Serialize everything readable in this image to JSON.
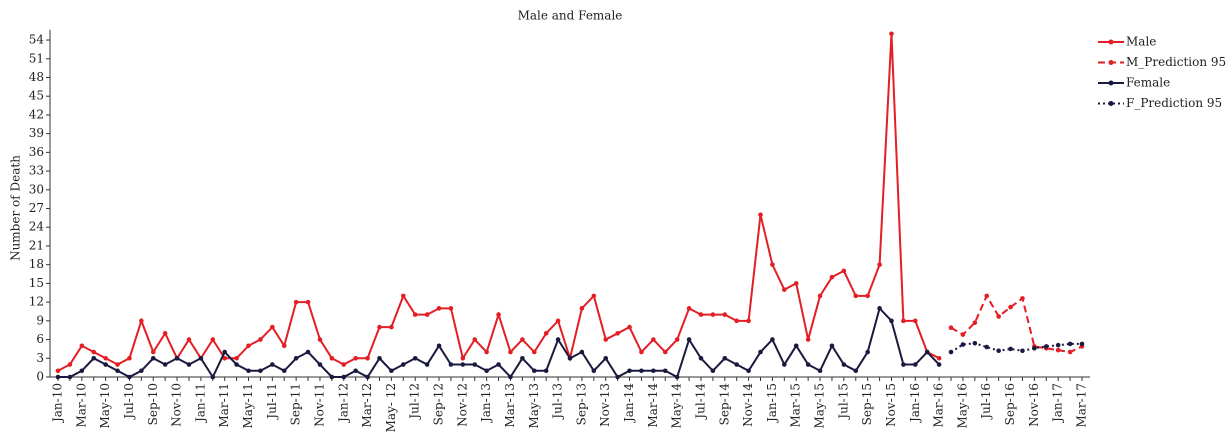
{
  "chart_data": {
    "type": "line",
    "title": "Male and Female",
    "y_label": "Number of Death",
    "categories": [
      "Jan-10",
      null,
      "Mar-10",
      null,
      "May-10",
      null,
      "Jul-10",
      null,
      "Sep-10",
      null,
      "Nov-10",
      null,
      "Jan-11",
      null,
      "Mar-11",
      null,
      "May-11",
      null,
      "Jul-11",
      null,
      "Sep-11",
      null,
      "Nov-11",
      null,
      "Jan-12",
      null,
      "Mar-12",
      null,
      "May- 12",
      null,
      "Jul-12",
      null,
      "Sep-12",
      null,
      "Nov-12",
      null,
      "Jan-13",
      null,
      "Mar-13",
      null,
      "May-13",
      null,
      "Jul-13",
      null,
      "Sep-13",
      null,
      "Nov-13",
      null,
      "Jan-14",
      null,
      "Mar-14",
      null,
      "May-14",
      null,
      "Jul-14",
      null,
      "Sep-14",
      null,
      "Nov-14",
      null,
      "Jan-15",
      null,
      "Mar-15",
      null,
      "May-15",
      null,
      "Jul-15",
      null,
      "Sep-15",
      null,
      "Nov-15",
      null,
      "Jan-16",
      null,
      "Mar-16",
      null,
      "May-16",
      null,
      "Jul-16",
      null,
      "Sep-16",
      null,
      "Nov-16",
      null,
      "Jan-17",
      null,
      "Mar-17"
    ],
    "series": [
      {
        "name": "Male",
        "color": "#e31e24",
        "style": "solid",
        "values": [
          1,
          2,
          5,
          4,
          3,
          2,
          3,
          9,
          4,
          7,
          3,
          6,
          3,
          6,
          3,
          3,
          5,
          6,
          8,
          5,
          12,
          12,
          6,
          3,
          2,
          3,
          3,
          8,
          8,
          13,
          10,
          10,
          11,
          11,
          3,
          6,
          4,
          10,
          4,
          6,
          4,
          7,
          9,
          3,
          11,
          13,
          6,
          7,
          8,
          4,
          6,
          4,
          6,
          11,
          10,
          10,
          10,
          9,
          9,
          26,
          18,
          14,
          15,
          6,
          13,
          16,
          17,
          13,
          13,
          18,
          55,
          9,
          9,
          4,
          3,
          null,
          null,
          null,
          null,
          null,
          null,
          null,
          null,
          null,
          null,
          null,
          null
        ]
      },
      {
        "name": "M_Prediction 95",
        "color": "#e31e24",
        "style": "dashed",
        "values": [
          null,
          null,
          null,
          null,
          null,
          null,
          null,
          null,
          null,
          null,
          null,
          null,
          null,
          null,
          null,
          null,
          null,
          null,
          null,
          null,
          null,
          null,
          null,
          null,
          null,
          null,
          null,
          null,
          null,
          null,
          null,
          null,
          null,
          null,
          null,
          null,
          null,
          null,
          null,
          null,
          null,
          null,
          null,
          null,
          null,
          null,
          null,
          null,
          null,
          null,
          null,
          null,
          null,
          null,
          null,
          null,
          null,
          null,
          null,
          null,
          null,
          null,
          null,
          null,
          null,
          null,
          null,
          null,
          null,
          null,
          null,
          null,
          null,
          null,
          null,
          7.9,
          6.8,
          8.7,
          13,
          9.7,
          11.2,
          12.6,
          4.9,
          4.6,
          4.3,
          4.0,
          4.9
        ]
      },
      {
        "name": "Female",
        "color": "#1a1a40",
        "style": "solid",
        "values": [
          0,
          0,
          1,
          3,
          2,
          1,
          0,
          1,
          3,
          2,
          3,
          2,
          3,
          0,
          4,
          2,
          1,
          1,
          2,
          1,
          3,
          4,
          2,
          0,
          0,
          1,
          0,
          3,
          1,
          2,
          3,
          2,
          5,
          2,
          2,
          2,
          1,
          2,
          0,
          3,
          1,
          1,
          6,
          3,
          4,
          1,
          3,
          0,
          1,
          1,
          1,
          1,
          0,
          6,
          3,
          1,
          3,
          2,
          1,
          4,
          6,
          2,
          5,
          2,
          1,
          5,
          2,
          1,
          4,
          11,
          9,
          2,
          2,
          4,
          2,
          null,
          null,
          null,
          null,
          null,
          null,
          null,
          null,
          null,
          null,
          null,
          null
        ]
      },
      {
        "name": "F_Prediction 95",
        "color": "#1a1a40",
        "style": "dotted",
        "values": [
          null,
          null,
          null,
          null,
          null,
          null,
          null,
          null,
          null,
          null,
          null,
          null,
          null,
          null,
          null,
          null,
          null,
          null,
          null,
          null,
          null,
          null,
          null,
          null,
          null,
          null,
          null,
          null,
          null,
          null,
          null,
          null,
          null,
          null,
          null,
          null,
          null,
          null,
          null,
          null,
          null,
          null,
          null,
          null,
          null,
          null,
          null,
          null,
          null,
          null,
          null,
          null,
          null,
          null,
          null,
          null,
          null,
          null,
          null,
          null,
          null,
          null,
          null,
          null,
          null,
          null,
          null,
          null,
          null,
          null,
          null,
          null,
          null,
          null,
          null,
          4.0,
          5.2,
          5.4,
          4.8,
          4.2,
          4.5,
          4.2,
          4.6,
          4.9,
          5.1,
          5.3,
          5.3
        ]
      }
    ],
    "ylim": [
      0,
      55
    ],
    "yticks": [
      0,
      3,
      6,
      9,
      12,
      15,
      18,
      21,
      24,
      27,
      30,
      33,
      36,
      39,
      42,
      45,
      48,
      51,
      54
    ],
    "legend": "right"
  }
}
